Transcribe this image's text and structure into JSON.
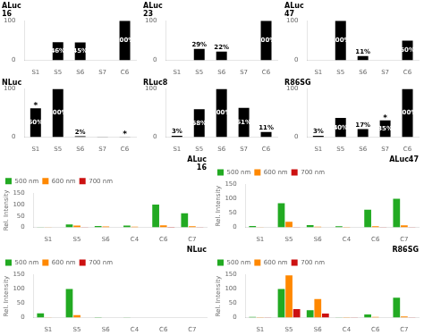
{
  "chart_data": [
    {
      "type": "bar",
      "title": "ALuc",
      "subtitle": "16",
      "categories": [
        "S1",
        "S5",
        "S6",
        "S7",
        "C6"
      ],
      "values": [
        0.5,
        46,
        45,
        0.5,
        100
      ],
      "value_labels": [
        null,
        "46%",
        "45%",
        null,
        "100%"
      ],
      "data_labels": true,
      "color": "#000000",
      "ylim": [
        0,
        100
      ],
      "yticks": [
        0,
        100
      ],
      "grid": false
    },
    {
      "type": "bar",
      "title": "ALuc",
      "subtitle": "23",
      "categories": [
        "S1",
        "S5",
        "S6",
        "S7",
        "C6"
      ],
      "values": [
        0.5,
        29,
        22,
        0.5,
        100
      ],
      "value_labels": [
        null,
        "29%",
        "22%",
        null,
        "100%"
      ],
      "data_labels": true,
      "color": "#000000",
      "ylim": [
        0,
        100
      ],
      "yticks": [
        0,
        100
      ],
      "grid": false
    },
    {
      "type": "bar",
      "title": "ALuc",
      "subtitle": "47",
      "categories": [
        "S1",
        "S5",
        "S6",
        "S7",
        "C6"
      ],
      "values": [
        0.5,
        100,
        11,
        0.5,
        50
      ],
      "value_labels": [
        null,
        "100%",
        "11%",
        null,
        "50%"
      ],
      "data_labels": true,
      "color": "#000000",
      "ylim": [
        0,
        100
      ],
      "yticks": [
        0,
        100
      ],
      "grid": false
    },
    {
      "type": "bar",
      "title": "NLuc",
      "categories": [
        "S1",
        "S5",
        "S6",
        "S7",
        "C6"
      ],
      "values": [
        60,
        100,
        2,
        0.5,
        0.5
      ],
      "value_labels": [
        "60%",
        "100%",
        "2%",
        null,
        null
      ],
      "data_labels": true,
      "annotations": [
        {
          "text": "*",
          "category": "S1"
        },
        {
          "text": "*",
          "category": "C6"
        }
      ],
      "color": "#000000",
      "ylim": [
        0,
        100
      ],
      "yticks": [
        0,
        100
      ],
      "grid": false
    },
    {
      "type": "bar",
      "title": "RLuc8",
      "categories": [
        "S1",
        "S5",
        "S6",
        "S7",
        "C6"
      ],
      "values": [
        3,
        58,
        100,
        61,
        11
      ],
      "value_labels": [
        "3%",
        "58%",
        "100%",
        "61%",
        "11%"
      ],
      "data_labels": true,
      "color": "#000000",
      "ylim": [
        0,
        100
      ],
      "yticks": [
        0,
        100
      ],
      "grid": false
    },
    {
      "type": "bar",
      "title": "R86SG",
      "categories": [
        "S1",
        "S5",
        "S6",
        "S7",
        "C6"
      ],
      "values": [
        3,
        40,
        17,
        35,
        100
      ],
      "value_labels": [
        "3%",
        "40%",
        "17%",
        "35%",
        "100%"
      ],
      "data_labels": true,
      "annotations": [
        {
          "text": "*",
          "category": "S7"
        }
      ],
      "color": "#000000",
      "ylim": [
        0,
        100
      ],
      "yticks": [
        0,
        100
      ],
      "grid": false
    },
    {
      "type": "bar",
      "title": "ALuc",
      "subtitle": "16",
      "ylabel": "Rel. Intensity",
      "categories": [
        "S1",
        "S5",
        "S6",
        "C4",
        "C6",
        "C7"
      ],
      "series": [
        {
          "name": "500 nm",
          "color": "#22aa22",
          "values": [
            1,
            13,
            6,
            8,
            100,
            62
          ]
        },
        {
          "name": "600 nm",
          "color": "#ff8800",
          "values": [
            1,
            8,
            4,
            3,
            9,
            5
          ]
        },
        {
          "name": "700 nm",
          "color": "#cc1111",
          "values": [
            0.3,
            1,
            0.5,
            0.5,
            2,
            1
          ]
        }
      ],
      "ylim": [
        0,
        150
      ],
      "yticks": [
        0,
        50,
        100,
        150
      ],
      "legend": "upper left",
      "grid": false
    },
    {
      "type": "bar",
      "title": "ALuc47",
      "ylabel": "Rel. Intensity",
      "categories": [
        "S1",
        "S5",
        "S6",
        "C4",
        "C6",
        "C7"
      ],
      "series": [
        {
          "name": "500 nm",
          "color": "#22aa22",
          "values": [
            5,
            85,
            8,
            4,
            62,
            100
          ]
        },
        {
          "name": "600 nm",
          "color": "#ff8800",
          "values": [
            1,
            20,
            3,
            2,
            4,
            7
          ]
        },
        {
          "name": "700 nm",
          "color": "#cc1111",
          "values": [
            0.3,
            1,
            0.5,
            0.5,
            1,
            1
          ]
        }
      ],
      "ylim": [
        0,
        150
      ],
      "yticks": [
        0,
        50,
        100,
        150
      ],
      "legend": "upper left",
      "grid": false
    },
    {
      "type": "bar",
      "title": "NLuc",
      "ylabel": "Rel. Intensity",
      "categories": [
        "S1",
        "S5",
        "S6",
        "C4",
        "C6",
        "C7"
      ],
      "series": [
        {
          "name": "500 nm",
          "color": "#22aa22",
          "values": [
            15,
            100,
            2,
            1,
            0.5,
            0.5
          ]
        },
        {
          "name": "600 nm",
          "color": "#ff8800",
          "values": [
            1,
            9,
            0.5,
            0.3,
            0.3,
            0.3
          ]
        },
        {
          "name": "700 nm",
          "color": "#cc1111",
          "values": [
            0.3,
            0.5,
            0.3,
            0.2,
            0.2,
            0.2
          ]
        }
      ],
      "ylim": [
        0,
        150
      ],
      "yticks": [
        0,
        50,
        100,
        150
      ],
      "legend": "upper left",
      "grid": false
    },
    {
      "type": "bar",
      "title": "R86SG",
      "ylabel": "Rel. Intensity",
      "categories": [
        "S1",
        "S5",
        "S6",
        "C4",
        "C6",
        "C7"
      ],
      "series": [
        {
          "name": "500 nm",
          "color": "#22aa22",
          "values": [
            3,
            100,
            26,
            1,
            11,
            70
          ]
        },
        {
          "name": "600 nm",
          "color": "#ff8800",
          "values": [
            2,
            148,
            65,
            2,
            3,
            4
          ]
        },
        {
          "name": "700 nm",
          "color": "#cc1111",
          "values": [
            1,
            30,
            14,
            1,
            0.5,
            1
          ]
        }
      ],
      "ylim": [
        0,
        150
      ],
      "yticks": [
        0,
        50,
        100,
        150
      ],
      "legend": "upper left",
      "grid": false
    }
  ]
}
